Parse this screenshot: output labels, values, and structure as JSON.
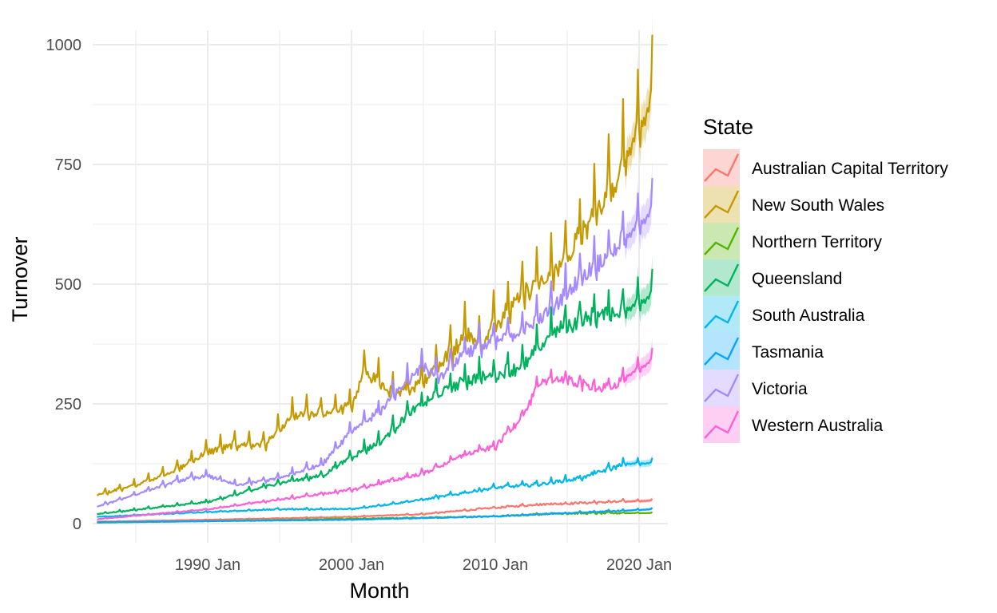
{
  "chart_data": {
    "type": "line",
    "title": "",
    "xlabel": "Month",
    "ylabel": "Turnover",
    "x_range": [
      "1982 Jan",
      "2022 Jan"
    ],
    "ylim": [
      -40,
      1030
    ],
    "x_ticks": [
      {
        "label": "1990 Jan",
        "value": 1990
      },
      {
        "label": "2000 Jan",
        "value": 2000
      },
      {
        "label": "2010 Jan",
        "value": 2010
      },
      {
        "label": "2020 Jan",
        "value": 2020
      }
    ],
    "y_ticks": [
      {
        "label": "0",
        "value": 0
      },
      {
        "label": "250",
        "value": 250
      },
      {
        "label": "500",
        "value": 500
      },
      {
        "label": "750",
        "value": 750
      },
      {
        "label": "1000",
        "value": 1000
      }
    ],
    "grid": true,
    "theme": "minimal",
    "forecast_start": "2019 Jan",
    "forecast_end": "2020 Dec",
    "legend": {
      "title": "State",
      "position": "right",
      "entries": [
        "Australian Capital Territory",
        "New South Wales",
        "Northern Territory",
        "Queensland",
        "South Australia",
        "Tasmania",
        "Victoria",
        "Western Australia"
      ]
    },
    "series": [
      {
        "name": "Australian Capital Territory",
        "color": "#F8766D",
        "points": [
          [
            1982.3,
            4
          ],
          [
            1990,
            8
          ],
          [
            2000,
            14
          ],
          [
            2005,
            20
          ],
          [
            2010,
            33
          ],
          [
            2013,
            40
          ],
          [
            2019,
            46
          ]
        ],
        "seasonal_amp": 0.08,
        "noise": 0.05,
        "forecast_end": 48,
        "forecast_band": 4
      },
      {
        "name": "New South Wales",
        "color": "#C49A00",
        "points": [
          [
            1982.3,
            60
          ],
          [
            1985,
            80
          ],
          [
            1988,
            115
          ],
          [
            1990,
            150
          ],
          [
            1992,
            165
          ],
          [
            1994,
            165
          ],
          [
            1996,
            225
          ],
          [
            1998,
            230
          ],
          [
            2000,
            245
          ],
          [
            2001,
            320
          ],
          [
            2003,
            265
          ],
          [
            2005,
            300
          ],
          [
            2007,
            360
          ],
          [
            2008,
            400
          ],
          [
            2009,
            370
          ],
          [
            2010,
            420
          ],
          [
            2012,
            485
          ],
          [
            2014,
            520
          ],
          [
            2016,
            600
          ],
          [
            2018,
            700
          ],
          [
            2019,
            760
          ]
        ],
        "seasonal_amp": 0.16,
        "noise": 0.035,
        "forecast_end": 880,
        "forecast_band": 45
      },
      {
        "name": "Northern Territory",
        "color": "#53B400",
        "points": [
          [
            1982.3,
            2
          ],
          [
            1990,
            5
          ],
          [
            2000,
            10
          ],
          [
            2010,
            15
          ],
          [
            2014,
            21
          ],
          [
            2019,
            22
          ]
        ],
        "seasonal_amp": 0.1,
        "noise": 0.08,
        "forecast_end": 22,
        "forecast_band": 2
      },
      {
        "name": "Queensland",
        "color": "#00B25D",
        "points": [
          [
            1982.3,
            20
          ],
          [
            1990,
            45
          ],
          [
            1995,
            85
          ],
          [
            1998,
            100
          ],
          [
            2000,
            140
          ],
          [
            2002,
            170
          ],
          [
            2004,
            230
          ],
          [
            2006,
            270
          ],
          [
            2008,
            300
          ],
          [
            2010,
            310
          ],
          [
            2012,
            330
          ],
          [
            2014,
            400
          ],
          [
            2016,
            425
          ],
          [
            2018,
            440
          ],
          [
            2019,
            445
          ]
        ],
        "seasonal_amp": 0.12,
        "noise": 0.035,
        "forecast_end": 475,
        "forecast_band": 30
      },
      {
        "name": "South Australia",
        "color": "#00B6EB",
        "points": [
          [
            1982.3,
            14
          ],
          [
            1990,
            24
          ],
          [
            1995,
            30
          ],
          [
            2000,
            30
          ],
          [
            2005,
            50
          ],
          [
            2010,
            75
          ],
          [
            2013,
            82
          ],
          [
            2016,
            95
          ],
          [
            2019,
            125
          ]
        ],
        "seasonal_amp": 0.09,
        "noise": 0.04,
        "forecast_end": 126,
        "forecast_band": 8
      },
      {
        "name": "Tasmania",
        "color": "#06A4FF",
        "points": [
          [
            1982.3,
            3
          ],
          [
            1990,
            5
          ],
          [
            2000,
            8
          ],
          [
            2010,
            15
          ],
          [
            2015,
            22
          ],
          [
            2019,
            27
          ]
        ],
        "seasonal_amp": 0.1,
        "noise": 0.05,
        "forecast_end": 30,
        "forecast_band": 3
      },
      {
        "name": "Victoria",
        "color": "#A58AFF",
        "points": [
          [
            1982.3,
            35
          ],
          [
            1988,
            90
          ],
          [
            1990,
            100
          ],
          [
            1992,
            80
          ],
          [
            1995,
            95
          ],
          [
            1998,
            125
          ],
          [
            2000,
            195
          ],
          [
            2002,
            235
          ],
          [
            2004,
            300
          ],
          [
            2005,
            330
          ],
          [
            2006,
            305
          ],
          [
            2008,
            360
          ],
          [
            2010,
            380
          ],
          [
            2012,
            405
          ],
          [
            2014,
            450
          ],
          [
            2016,
            515
          ],
          [
            2018,
            565
          ],
          [
            2019,
            595
          ]
        ],
        "seasonal_amp": 0.11,
        "noise": 0.03,
        "forecast_end": 650,
        "forecast_band": 38
      },
      {
        "name": "Western Australia",
        "color": "#FB61D7",
        "points": [
          [
            1982.3,
            9
          ],
          [
            1990,
            30
          ],
          [
            1995,
            50
          ],
          [
            2000,
            70
          ],
          [
            2005,
            105
          ],
          [
            2008,
            145
          ],
          [
            2010,
            160
          ],
          [
            2012,
            230
          ],
          [
            2013,
            285
          ],
          [
            2014,
            305
          ],
          [
            2016,
            290
          ],
          [
            2018,
            280
          ],
          [
            2019,
            305
          ]
        ],
        "seasonal_amp": 0.08,
        "noise": 0.035,
        "forecast_end": 340,
        "forecast_band": 22
      }
    ]
  }
}
